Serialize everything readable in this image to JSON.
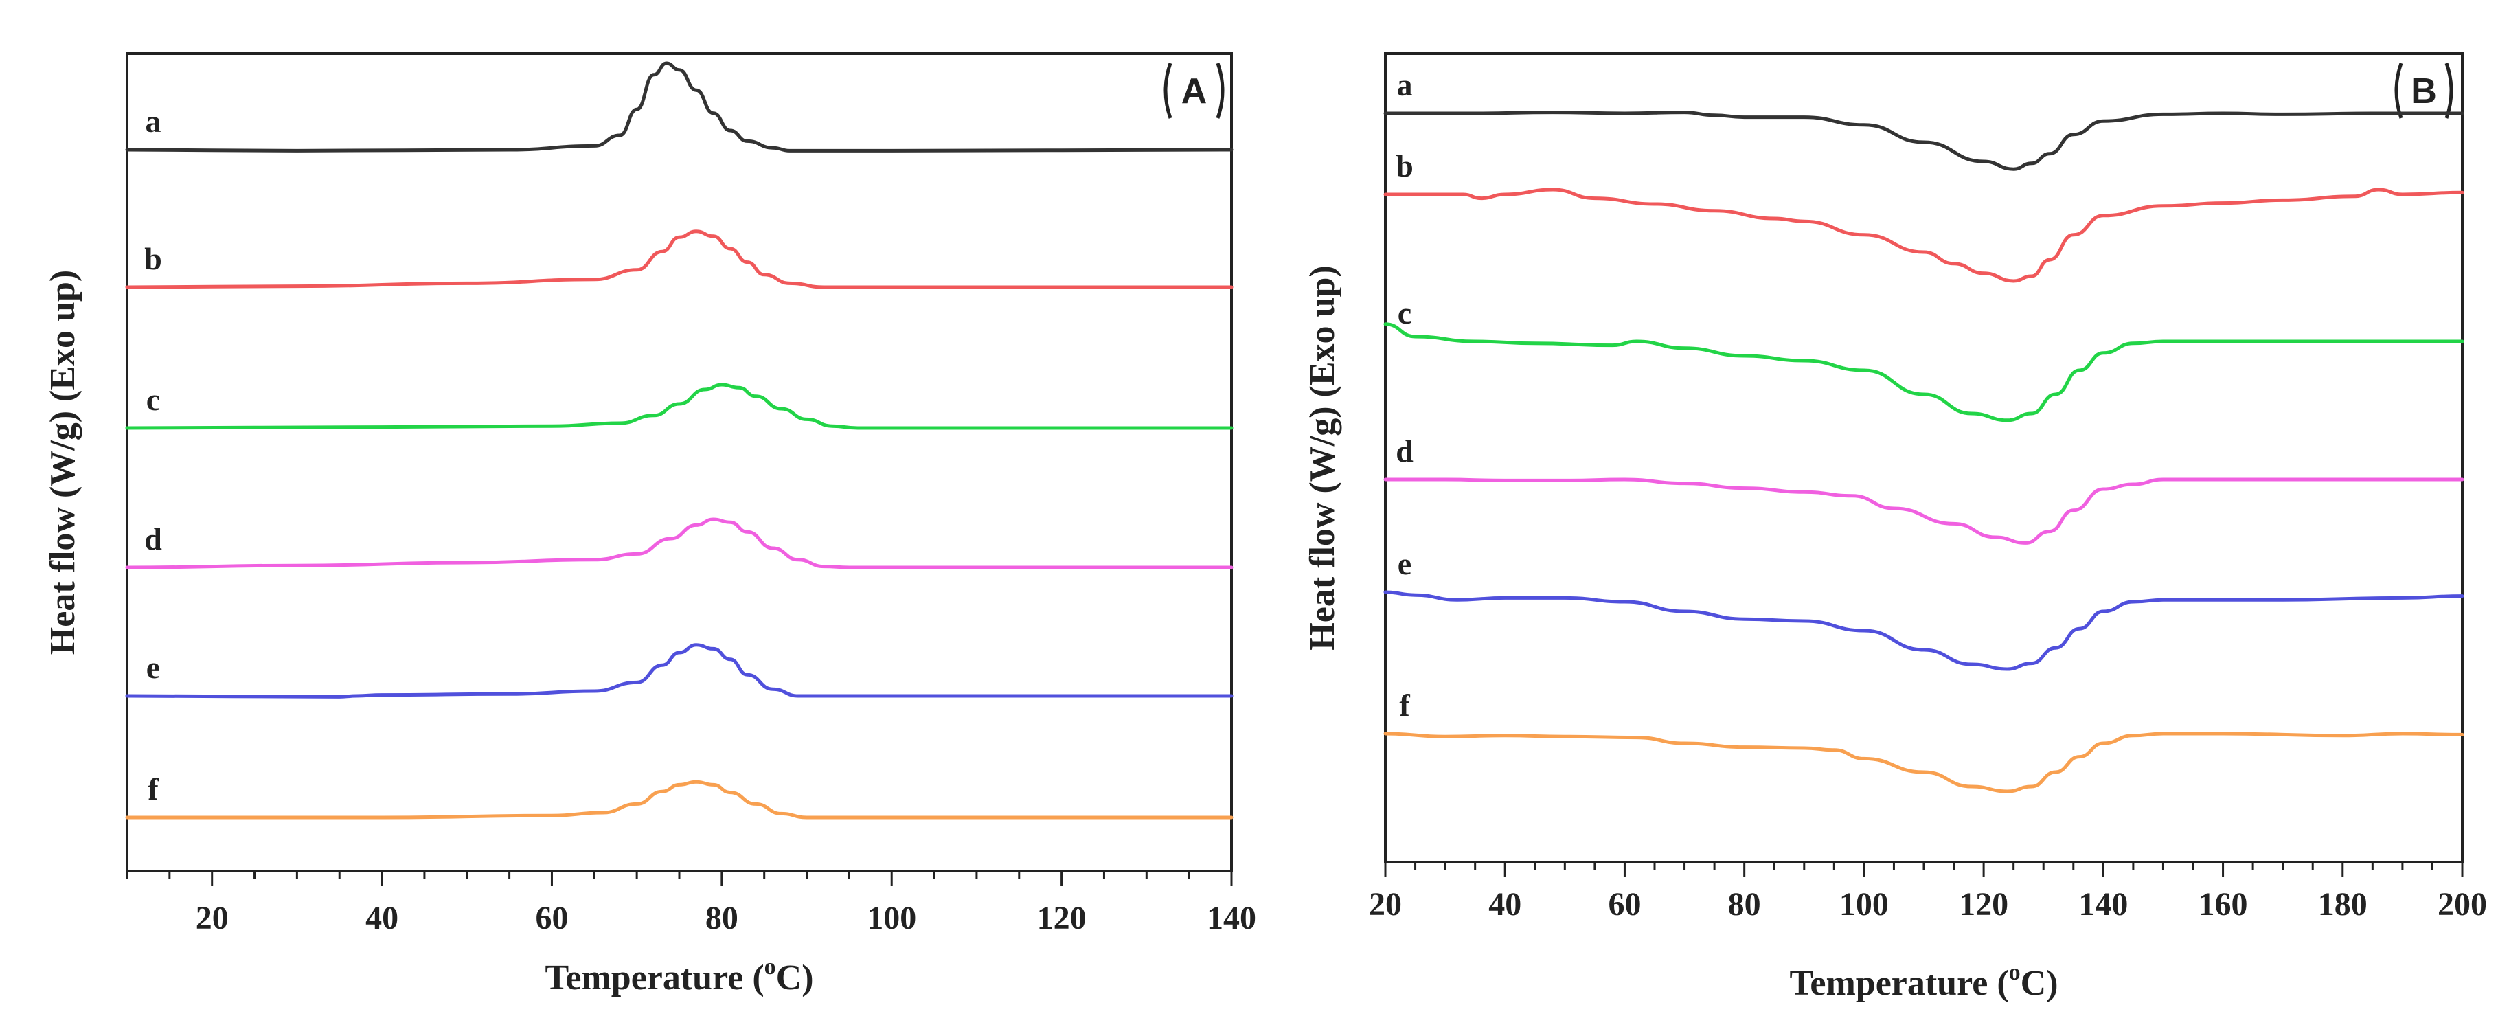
{
  "chart_data": [
    {
      "type": "line",
      "panel_label": "(A)",
      "panel_text": "A",
      "xlabel": "Temperature (°C)",
      "xlabel_parts": [
        "Temperature (",
        "o",
        "C)"
      ],
      "ylabel": "Heat flow (W/g) (Exo up)",
      "xlim": [
        10,
        140
      ],
      "xticks": [
        20,
        40,
        60,
        80,
        100,
        120,
        140
      ],
      "series": [
        {
          "name": "a",
          "color": "#333333",
          "points": [
            [
              10,
              0.0
            ],
            [
              30,
              -0.01
            ],
            [
              55,
              0.0
            ],
            [
              65,
              0.04
            ],
            [
              68,
              0.15
            ],
            [
              70,
              0.42
            ],
            [
              72,
              0.78
            ],
            [
              73.5,
              0.9
            ],
            [
              75,
              0.83
            ],
            [
              77,
              0.62
            ],
            [
              79,
              0.38
            ],
            [
              81,
              0.2
            ],
            [
              83,
              0.09
            ],
            [
              86,
              0.02
            ],
            [
              88,
              -0.01
            ],
            [
              100,
              -0.01
            ],
            [
              140,
              0.0
            ]
          ]
        },
        {
          "name": "b",
          "color": "#f0585a",
          "points": [
            [
              10,
              0.0
            ],
            [
              30,
              0.01
            ],
            [
              50,
              0.04
            ],
            [
              65,
              0.08
            ],
            [
              70,
              0.18
            ],
            [
              73,
              0.37
            ],
            [
              75,
              0.52
            ],
            [
              77,
              0.58
            ],
            [
              79,
              0.53
            ],
            [
              81,
              0.4
            ],
            [
              83,
              0.26
            ],
            [
              85,
              0.13
            ],
            [
              88,
              0.04
            ],
            [
              92,
              0.0
            ],
            [
              100,
              0.0
            ],
            [
              140,
              0.0
            ]
          ]
        },
        {
          "name": "c",
          "color": "#22d447",
          "points": [
            [
              10,
              0.0
            ],
            [
              40,
              0.01
            ],
            [
              60,
              0.02
            ],
            [
              68,
              0.05
            ],
            [
              72,
              0.13
            ],
            [
              75,
              0.25
            ],
            [
              78,
              0.4
            ],
            [
              80,
              0.45
            ],
            [
              82,
              0.42
            ],
            [
              84,
              0.33
            ],
            [
              87,
              0.2
            ],
            [
              90,
              0.09
            ],
            [
              93,
              0.02
            ],
            [
              96,
              0.0
            ],
            [
              140,
              0.0
            ]
          ]
        },
        {
          "name": "d",
          "color": "#f060e0",
          "points": [
            [
              10,
              0.0
            ],
            [
              30,
              0.02
            ],
            [
              50,
              0.05
            ],
            [
              65,
              0.08
            ],
            [
              70,
              0.14
            ],
            [
              74,
              0.3
            ],
            [
              77,
              0.44
            ],
            [
              79,
              0.5
            ],
            [
              81,
              0.47
            ],
            [
              83,
              0.37
            ],
            [
              86,
              0.2
            ],
            [
              89,
              0.08
            ],
            [
              92,
              0.01
            ],
            [
              95,
              0.0
            ],
            [
              140,
              0.0
            ]
          ]
        },
        {
          "name": "e",
          "color": "#5050dc",
          "points": [
            [
              10,
              0.0
            ],
            [
              35,
              -0.01
            ],
            [
              37,
              0.0
            ],
            [
              40,
              0.01
            ],
            [
              55,
              0.02
            ],
            [
              65,
              0.05
            ],
            [
              70,
              0.14
            ],
            [
              73,
              0.32
            ],
            [
              75,
              0.45
            ],
            [
              77,
              0.53
            ],
            [
              79,
              0.49
            ],
            [
              81,
              0.38
            ],
            [
              83,
              0.22
            ],
            [
              86,
              0.07
            ],
            [
              89,
              0.0
            ],
            [
              140,
              0.0
            ]
          ]
        },
        {
          "name": "f",
          "color": "#f8a050",
          "points": [
            [
              10,
              0.0
            ],
            [
              40,
              0.0
            ],
            [
              60,
              0.02
            ],
            [
              66,
              0.05
            ],
            [
              70,
              0.14
            ],
            [
              73,
              0.27
            ],
            [
              75,
              0.34
            ],
            [
              77,
              0.37
            ],
            [
              79,
              0.34
            ],
            [
              81,
              0.26
            ],
            [
              84,
              0.14
            ],
            [
              87,
              0.04
            ],
            [
              90,
              0.0
            ],
            [
              140,
              0.0
            ]
          ]
        }
      ]
    },
    {
      "type": "line",
      "panel_label": "(B)",
      "panel_text": "B",
      "xlabel": "Temperature (°C)",
      "xlabel_parts": [
        "Temperature (",
        "o",
        "C)"
      ],
      "ylabel": "Heat flow (W/g) (Exo up)",
      "xlim": [
        20,
        200
      ],
      "xticks": [
        20,
        40,
        60,
        80,
        100,
        120,
        140,
        160,
        180,
        200
      ],
      "series": [
        {
          "name": "a",
          "color": "#333333",
          "points": [
            [
              20,
              0.0
            ],
            [
              35,
              0.0
            ],
            [
              48,
              0.01
            ],
            [
              60,
              0.0
            ],
            [
              70,
              0.01
            ],
            [
              75,
              -0.02
            ],
            [
              80,
              -0.04
            ],
            [
              90,
              -0.04
            ],
            [
              100,
              -0.12
            ],
            [
              110,
              -0.3
            ],
            [
              120,
              -0.5
            ],
            [
              125,
              -0.58
            ],
            [
              128,
              -0.52
            ],
            [
              131,
              -0.42
            ],
            [
              135,
              -0.22
            ],
            [
              140,
              -0.08
            ],
            [
              150,
              -0.01
            ],
            [
              160,
              0.0
            ],
            [
              170,
              -0.01
            ],
            [
              185,
              0.0
            ],
            [
              200,
              0.0
            ]
          ]
        },
        {
          "name": "b",
          "color": "#f0585a",
          "points": [
            [
              20,
              0.0
            ],
            [
              33,
              0.0
            ],
            [
              36,
              -0.04
            ],
            [
              40,
              0.0
            ],
            [
              48,
              0.05
            ],
            [
              55,
              -0.04
            ],
            [
              65,
              -0.1
            ],
            [
              75,
              -0.17
            ],
            [
              85,
              -0.25
            ],
            [
              90,
              -0.28
            ],
            [
              100,
              -0.42
            ],
            [
              110,
              -0.6
            ],
            [
              115,
              -0.72
            ],
            [
              120,
              -0.82
            ],
            [
              125,
              -0.9
            ],
            [
              128,
              -0.85
            ],
            [
              131,
              -0.68
            ],
            [
              135,
              -0.42
            ],
            [
              140,
              -0.22
            ],
            [
              150,
              -0.12
            ],
            [
              160,
              -0.09
            ],
            [
              170,
              -0.06
            ],
            [
              182,
              -0.02
            ],
            [
              186,
              0.05
            ],
            [
              190,
              0.0
            ],
            [
              200,
              0.02
            ]
          ]
        },
        {
          "name": "c",
          "color": "#22d447",
          "points": [
            [
              20,
              0.18
            ],
            [
              25,
              0.05
            ],
            [
              35,
              0.0
            ],
            [
              45,
              -0.02
            ],
            [
              58,
              -0.04
            ],
            [
              62,
              0.0
            ],
            [
              70,
              -0.07
            ],
            [
              80,
              -0.15
            ],
            [
              90,
              -0.2
            ],
            [
              100,
              -0.3
            ],
            [
              110,
              -0.55
            ],
            [
              118,
              -0.75
            ],
            [
              124,
              -0.82
            ],
            [
              128,
              -0.75
            ],
            [
              132,
              -0.55
            ],
            [
              136,
              -0.3
            ],
            [
              140,
              -0.12
            ],
            [
              145,
              -0.02
            ],
            [
              150,
              0.0
            ],
            [
              160,
              0.0
            ],
            [
              180,
              0.0
            ],
            [
              200,
              0.0
            ]
          ]
        },
        {
          "name": "d",
          "color": "#f060e0",
          "points": [
            [
              20,
              0.0
            ],
            [
              30,
              0.0
            ],
            [
              40,
              -0.01
            ],
            [
              50,
              -0.01
            ],
            [
              60,
              0.0
            ],
            [
              70,
              -0.04
            ],
            [
              80,
              -0.09
            ],
            [
              90,
              -0.13
            ],
            [
              98,
              -0.17
            ],
            [
              105,
              -0.3
            ],
            [
              115,
              -0.46
            ],
            [
              122,
              -0.6
            ],
            [
              127,
              -0.66
            ],
            [
              131,
              -0.54
            ],
            [
              135,
              -0.32
            ],
            [
              140,
              -0.1
            ],
            [
              145,
              -0.05
            ],
            [
              150,
              0.0
            ],
            [
              160,
              0.0
            ],
            [
              180,
              0.0
            ],
            [
              200,
              0.0
            ]
          ]
        },
        {
          "name": "e",
          "color": "#5050dc",
          "points": [
            [
              20,
              0.0
            ],
            [
              25,
              -0.03
            ],
            [
              32,
              -0.08
            ],
            [
              40,
              -0.06
            ],
            [
              50,
              -0.06
            ],
            [
              60,
              -0.1
            ],
            [
              70,
              -0.2
            ],
            [
              80,
              -0.28
            ],
            [
              90,
              -0.3
            ],
            [
              100,
              -0.4
            ],
            [
              110,
              -0.6
            ],
            [
              118,
              -0.75
            ],
            [
              124,
              -0.8
            ],
            [
              128,
              -0.74
            ],
            [
              132,
              -0.58
            ],
            [
              136,
              -0.38
            ],
            [
              140,
              -0.2
            ],
            [
              145,
              -0.1
            ],
            [
              150,
              -0.08
            ],
            [
              170,
              -0.08
            ],
            [
              190,
              -0.06
            ],
            [
              200,
              -0.04
            ]
          ]
        },
        {
          "name": "f",
          "color": "#f8a050",
          "points": [
            [
              20,
              0.0
            ],
            [
              30,
              -0.03
            ],
            [
              40,
              -0.02
            ],
            [
              50,
              -0.03
            ],
            [
              62,
              -0.04
            ],
            [
              70,
              -0.1
            ],
            [
              80,
              -0.14
            ],
            [
              90,
              -0.15
            ],
            [
              95,
              -0.17
            ],
            [
              100,
              -0.26
            ],
            [
              110,
              -0.4
            ],
            [
              118,
              -0.55
            ],
            [
              124,
              -0.6
            ],
            [
              128,
              -0.55
            ],
            [
              132,
              -0.4
            ],
            [
              136,
              -0.24
            ],
            [
              140,
              -0.1
            ],
            [
              145,
              -0.02
            ],
            [
              150,
              0.0
            ],
            [
              160,
              0.0
            ],
            [
              180,
              -0.02
            ],
            [
              190,
              0.0
            ],
            [
              200,
              -0.01
            ]
          ]
        }
      ]
    }
  ]
}
